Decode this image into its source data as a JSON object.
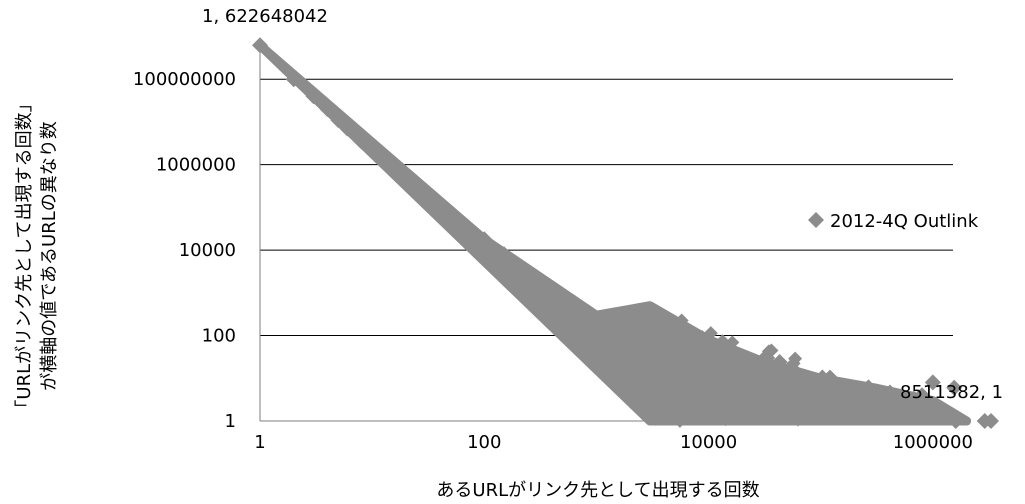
{
  "chart_data": {
    "type": "scatter",
    "xlabel": "あるURLがリンク先として出現する回数",
    "ylabel_lines": [
      "「URLがリンク先として出現する回数」",
      "が横軸の値であるURLの異なり数"
    ],
    "x_scale": "log",
    "y_scale": "log",
    "xlim": [
      1,
      10000000
    ],
    "ylim": [
      1,
      1000000000
    ],
    "x_ticks": [
      "1",
      "100",
      "10000",
      "1000000"
    ],
    "x_tick_values": [
      1,
      100,
      10000,
      1000000
    ],
    "y_ticks": [
      "1",
      "100",
      "10000",
      "1000000",
      "100000000"
    ],
    "y_tick_values": [
      1,
      100,
      10000,
      1000000,
      100000000
    ],
    "grid": "horizontal major lines",
    "legend_position": "right",
    "marker_color": "#8c8c8c",
    "series": [
      {
        "name": "2012-4Q Outlink",
        "points": [
          [
            1,
            622648042
          ],
          [
            2,
            100000000
          ],
          [
            3,
            40000000
          ],
          [
            4,
            20000000
          ],
          [
            5,
            11000000
          ],
          [
            6,
            7000000
          ],
          [
            7,
            5000000
          ],
          [
            8,
            3500000
          ],
          [
            10,
            2100000
          ],
          [
            12,
            1400000
          ],
          [
            15,
            850000
          ],
          [
            20,
            450000
          ],
          [
            25,
            280000
          ],
          [
            30,
            190000
          ],
          [
            40,
            110000
          ],
          [
            50,
            70000
          ],
          [
            70,
            36000
          ],
          [
            100,
            18000
          ],
          [
            150,
            8000
          ],
          [
            200,
            4500
          ],
          [
            300,
            2000
          ],
          [
            500,
            700
          ],
          [
            700,
            350
          ],
          [
            1000,
            180
          ],
          [
            1500,
            80
          ],
          [
            2000,
            45
          ],
          [
            3000,
            20
          ],
          [
            4000,
            12
          ],
          [
            5000,
            8
          ],
          [
            7000,
            4
          ],
          [
            8000,
            20
          ],
          [
            36000,
            8
          ],
          [
            43000,
            24
          ],
          [
            800000,
            4
          ],
          [
            1000000,
            8
          ],
          [
            1600000,
            1
          ],
          [
            2900000,
            1
          ],
          [
            1550000,
            6
          ],
          [
            3300000,
            1
          ],
          [
            8511382,
            1
          ]
        ]
      }
    ],
    "point_cloud": {
      "description_free_note": "",
      "upper_edge": [
        [
          1,
          622648042
        ],
        [
          100,
          18000
        ],
        [
          1000,
          300
        ],
        [
          3000,
          500
        ],
        [
          10000,
          80
        ],
        [
          30000,
          25
        ],
        [
          100000,
          10
        ],
        [
          300000,
          6
        ],
        [
          1000000,
          3
        ]
      ],
      "lower_edge": [
        [
          3000,
          1
        ],
        [
          10000,
          1
        ],
        [
          1000000,
          1
        ],
        [
          2000000,
          1
        ]
      ]
    },
    "annotations": [
      {
        "text": "1, 622648042",
        "x": 1,
        "y": 622648042,
        "anchor": "above"
      },
      {
        "text": "8511382, 1",
        "x": 8511382,
        "y": 1,
        "anchor": "above"
      }
    ]
  }
}
